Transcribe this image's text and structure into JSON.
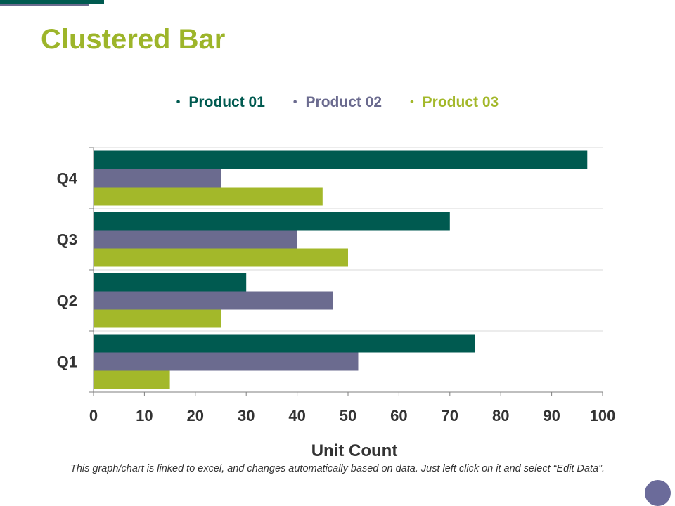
{
  "page": {
    "title": "Clustered Bar"
  },
  "colors": {
    "product01": "#005a50",
    "product02": "#6b6b8f",
    "product03": "#a3b82a"
  },
  "chart_data": {
    "type": "bar",
    "orientation": "horizontal",
    "title": "Clustered Bar",
    "xlabel": "Unit Count",
    "ylabel": "",
    "categories": [
      "Q1",
      "Q2",
      "Q3",
      "Q4"
    ],
    "series": [
      {
        "name": "Product 01",
        "color": "#005a50",
        "values": [
          75,
          30,
          70,
          97
        ]
      },
      {
        "name": "Product 02",
        "color": "#6b6b8f",
        "values": [
          52,
          47,
          40,
          25
        ]
      },
      {
        "name": "Product 03",
        "color": "#a3b82a",
        "values": [
          15,
          25,
          50,
          45
        ]
      }
    ],
    "xlim": [
      0,
      100
    ],
    "xticks": [
      0,
      10,
      20,
      30,
      40,
      50,
      60,
      70,
      80,
      90,
      100
    ],
    "grid": true,
    "legend": "top-center"
  },
  "footnote": "This graph/chart is linked to excel, and changes automatically based on data. Just left click on it and select “Edit Data”."
}
